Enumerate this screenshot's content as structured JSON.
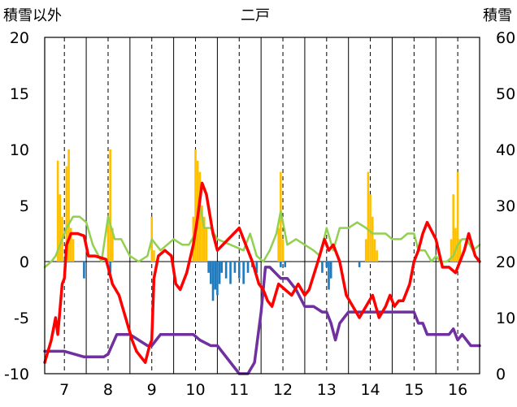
{
  "chart_data": {
    "type": "combo",
    "title": "二戸",
    "ylabel_left": "積雪以外",
    "ylabel_right": "積雪",
    "y_left_ticks": [
      "20",
      "15",
      "10",
      "5",
      "0",
      "-5",
      "-10"
    ],
    "y_right_ticks": [
      "60",
      "50",
      "40",
      "30",
      "20",
      "10",
      "0"
    ],
    "x_day_labels": [
      "7",
      "8",
      "9",
      "10",
      "11",
      "12",
      "13",
      "14",
      "15",
      "16"
    ],
    "ylim_left": [
      -10,
      20
    ],
    "ylim_right": [
      0,
      60
    ],
    "xlim": [
      6.55,
      16.5
    ],
    "grid": "vertical dashed at day centers, solid at day boundaries",
    "colors": {
      "precip_bars": "#ffc000",
      "negative_bars": "#1f7bbf",
      "red_line": "#ff0000",
      "green_line": "#92d050",
      "purple_line": "#7030a0",
      "grid": "#000000"
    },
    "series": [
      {
        "kind": "bar",
        "axis": "left",
        "color": "#ffc000",
        "x": [
          6.85,
          6.9,
          6.95,
          7.05,
          7.1,
          7.15,
          7.2,
          8.0,
          8.05,
          8.1,
          9.0,
          9.05,
          9.95,
          10.0,
          10.05,
          10.1,
          10.15,
          10.2,
          10.25,
          11.9,
          11.95,
          12.0,
          13.9,
          13.95,
          14.0,
          14.05,
          14.1,
          14.15,
          15.85,
          15.9,
          15.95,
          16.0,
          16.05
        ],
        "values": [
          9,
          6,
          4,
          8.5,
          10,
          3,
          2,
          4,
          10,
          3,
          4,
          1,
          4,
          10,
          9,
          8,
          5,
          4,
          3,
          3,
          8,
          2,
          2,
          8,
          6,
          4,
          2,
          1,
          2,
          6,
          3,
          8,
          2
        ]
      },
      {
        "kind": "bar",
        "axis": "left",
        "color": "#1f7bbf",
        "x": [
          7.45,
          8.05,
          10.3,
          10.35,
          10.4,
          10.45,
          10.5,
          10.55,
          10.6,
          10.7,
          10.8,
          10.9,
          11.0,
          11.1,
          11.2,
          11.3,
          11.4,
          11.95,
          12.05,
          12.9,
          13.0,
          13.05,
          13.1,
          13.75
        ],
        "values": [
          -1.5,
          -1,
          -1,
          -2,
          -3.5,
          -2.5,
          -3,
          -2,
          -1,
          -1.5,
          -2,
          -1,
          -1.5,
          -2,
          -1,
          -0.5,
          -1,
          -0.5,
          -0.5,
          -1,
          -0.5,
          -2.5,
          -1.5,
          -0.5
        ]
      },
      {
        "kind": "line",
        "axis": "left",
        "color": "#ff0000",
        "x": [
          6.55,
          6.7,
          6.8,
          6.85,
          6.95,
          7.0,
          7.05,
          7.15,
          7.3,
          7.45,
          7.55,
          7.7,
          7.95,
          8.0,
          8.1,
          8.25,
          8.4,
          8.55,
          8.65,
          8.75,
          8.85,
          8.95,
          9.0,
          9.05,
          9.15,
          9.3,
          9.45,
          9.55,
          9.65,
          9.8,
          9.95,
          10.05,
          10.15,
          10.25,
          10.4,
          10.5,
          11.0,
          11.1,
          11.3,
          11.45,
          11.55,
          11.65,
          11.75,
          11.9,
          12.05,
          12.2,
          12.35,
          12.5,
          12.6,
          12.8,
          12.95,
          13.05,
          13.15,
          13.3,
          13.45,
          13.6,
          13.75,
          13.9,
          14.05,
          14.2,
          14.35,
          14.45,
          14.55,
          14.65,
          14.75,
          14.9,
          15.0,
          15.1,
          15.2,
          15.3,
          15.5,
          15.65,
          15.8,
          15.95,
          16.05,
          16.15,
          16.25,
          16.4,
          16.5
        ],
        "values": [
          -9,
          -7,
          -5,
          -6.5,
          -2,
          -1.5,
          1.5,
          2.5,
          2.5,
          2.3,
          0.5,
          0.5,
          0.2,
          -0.5,
          -2,
          -3,
          -5,
          -7,
          -8,
          -8.5,
          -9,
          -7.5,
          -7,
          -1.5,
          0.5,
          1,
          0.5,
          -2,
          -2.5,
          -1,
          1.5,
          4,
          7,
          6,
          2.5,
          1,
          3,
          2,
          0,
          -2,
          -2.5,
          -3.5,
          -4,
          -2,
          -2.5,
          -3,
          -2,
          -3,
          -2.5,
          0,
          2,
          1,
          1.5,
          0,
          -3,
          -4,
          -5,
          -4,
          -3,
          -5,
          -4,
          -3,
          -4,
          -3.5,
          -3.5,
          -2,
          0,
          1,
          2.5,
          3.5,
          2,
          -0.5,
          -0.5,
          -1,
          0,
          1,
          2.5,
          0.5,
          0
        ]
      },
      {
        "kind": "line",
        "axis": "left",
        "color": "#92d050",
        "x": [
          6.55,
          6.7,
          6.8,
          6.95,
          7.05,
          7.2,
          7.35,
          7.5,
          7.65,
          7.85,
          8.0,
          8.15,
          8.3,
          8.5,
          8.7,
          8.9,
          9.0,
          9.1,
          9.2,
          9.35,
          9.5,
          9.7,
          9.85,
          10.0,
          10.1,
          10.2,
          10.35,
          10.5,
          11.1,
          11.25,
          11.4,
          11.55,
          11.7,
          11.85,
          11.95,
          12.1,
          12.3,
          12.5,
          12.7,
          12.85,
          13.0,
          13.15,
          13.3,
          13.5,
          13.7,
          13.9,
          14.05,
          14.2,
          14.35,
          14.5,
          14.7,
          14.85,
          15.0,
          15.1,
          15.25,
          15.4,
          15.5,
          15.6,
          15.75,
          15.9,
          16.0,
          16.1,
          16.2,
          16.35,
          16.5
        ],
        "values": [
          -0.5,
          0,
          0.5,
          2,
          3,
          4,
          4,
          3.5,
          1.5,
          0,
          4,
          2,
          2,
          0.5,
          0,
          0.5,
          2,
          1.5,
          1,
          1.5,
          2,
          1.5,
          1.5,
          2.5,
          5,
          3,
          3,
          2,
          1,
          2.5,
          0.5,
          0,
          1,
          2.5,
          4.5,
          1.5,
          2,
          1.5,
          1,
          0.5,
          3,
          1,
          3,
          3,
          3.5,
          3,
          2.5,
          2.5,
          2.5,
          2,
          2,
          2.5,
          2.5,
          1,
          1,
          0,
          0.5,
          0,
          0,
          0.5,
          1.5,
          2,
          2,
          1,
          1.5
        ]
      },
      {
        "kind": "line",
        "axis": "right",
        "color": "#7030a0",
        "x": [
          6.55,
          7.0,
          7.45,
          7.5,
          7.9,
          8.0,
          8.2,
          8.5,
          8.9,
          9.0,
          9.2,
          9.5,
          9.95,
          10.1,
          10.35,
          10.5,
          11.0,
          11.2,
          11.35,
          11.5,
          11.6,
          11.7,
          11.95,
          12.1,
          12.3,
          12.5,
          12.7,
          12.9,
          13.0,
          13.1,
          13.2,
          13.3,
          13.4,
          13.5,
          13.7,
          13.9,
          14.0,
          14.1,
          14.3,
          14.6,
          14.9,
          15.0,
          15.1,
          15.2,
          15.3,
          15.45,
          15.6,
          15.8,
          15.9,
          16.0,
          16.1,
          16.3,
          16.5
        ],
        "values": [
          4,
          4,
          3,
          3,
          3,
          3.5,
          7,
          7,
          5,
          5,
          7,
          7,
          7,
          6,
          5,
          5,
          0,
          0,
          2,
          11,
          19,
          19,
          17,
          17,
          15,
          12,
          12,
          11,
          11,
          9,
          6,
          9,
          10,
          11,
          11,
          11,
          11,
          11,
          11,
          11,
          11,
          11,
          9,
          9,
          7,
          7,
          7,
          7,
          8,
          6,
          7,
          5,
          5
        ]
      }
    ]
  }
}
